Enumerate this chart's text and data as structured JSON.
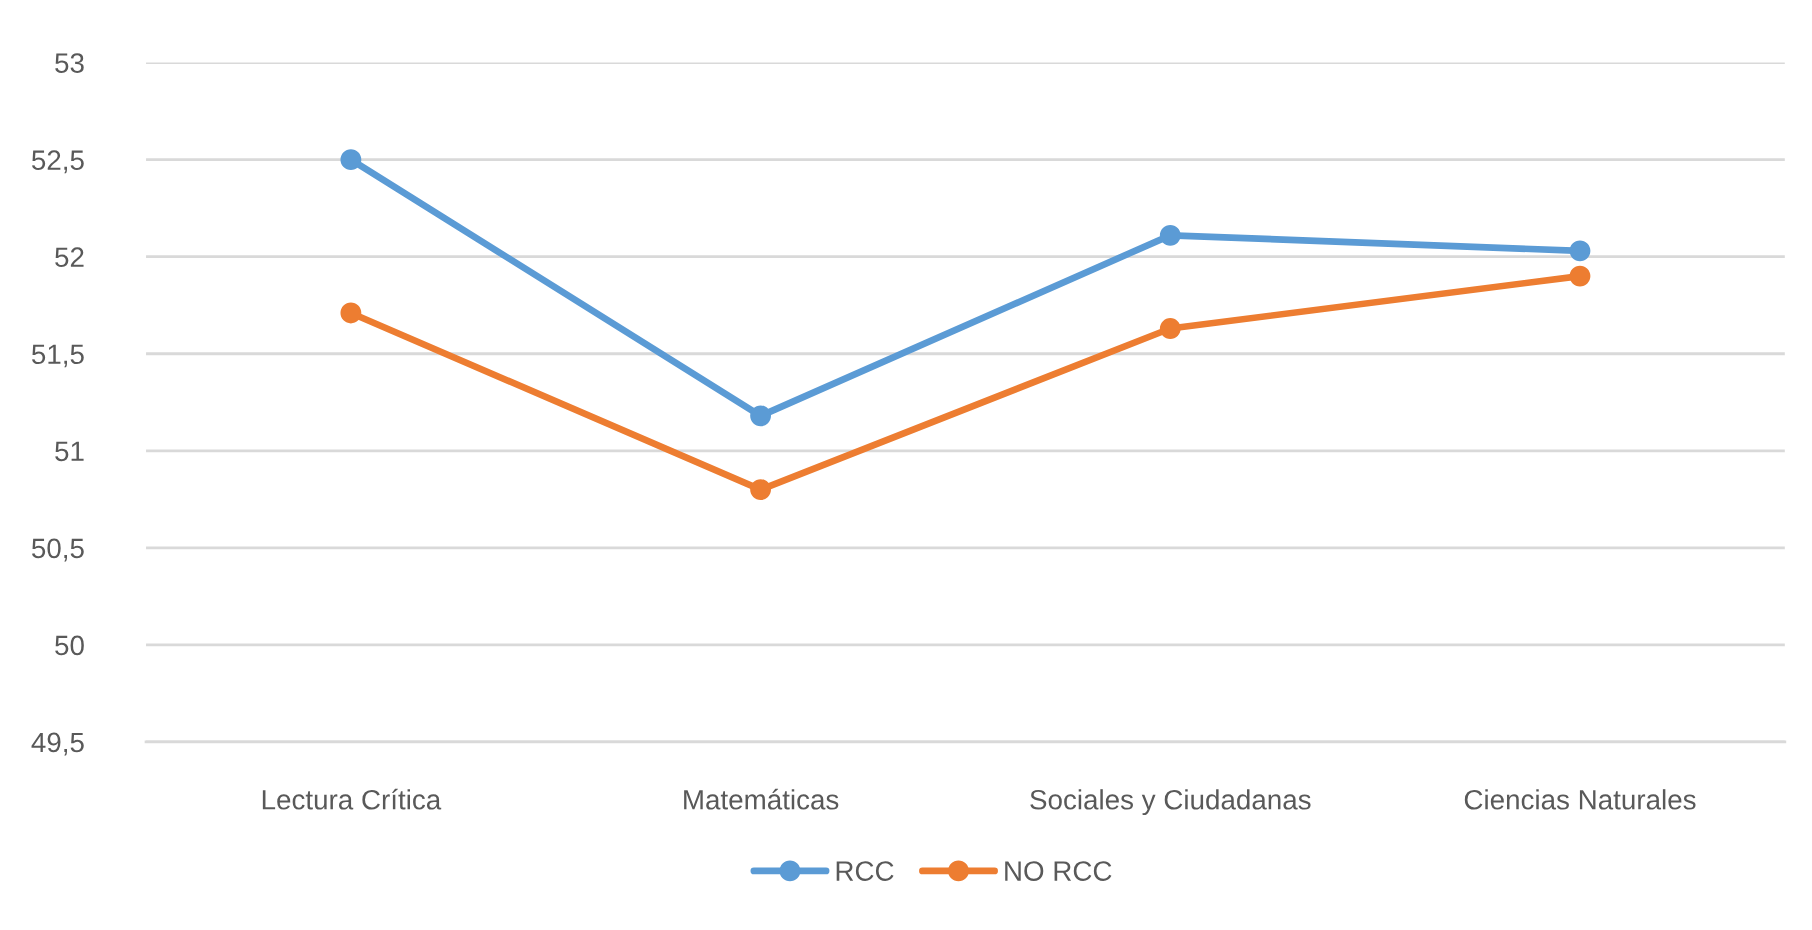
{
  "chart_data": {
    "type": "line",
    "categories": [
      "Lectura Crítica",
      "Matemáticas",
      "Sociales y Ciudadanas",
      "Ciencias Naturales"
    ],
    "series": [
      {
        "name": "RCC",
        "color": "#5b9bd5",
        "values": [
          52.5,
          51.18,
          52.11,
          52.03
        ]
      },
      {
        "name": "NO RCC",
        "color": "#ed7d31",
        "values": [
          51.71,
          50.8,
          51.63,
          51.9
        ]
      }
    ],
    "ylim": [
      49.5,
      53
    ],
    "yticks": [
      {
        "value": 49.5,
        "label": "49,5"
      },
      50,
      {
        "value": 50.5,
        "label": "50,5"
      },
      51,
      {
        "value": 51.5,
        "label": "51,5"
      },
      52,
      {
        "value": 52.5,
        "label": "52,5"
      },
      53
    ],
    "grid": "y",
    "legend": "bottom",
    "marker": "circle",
    "line_style": "solid"
  }
}
